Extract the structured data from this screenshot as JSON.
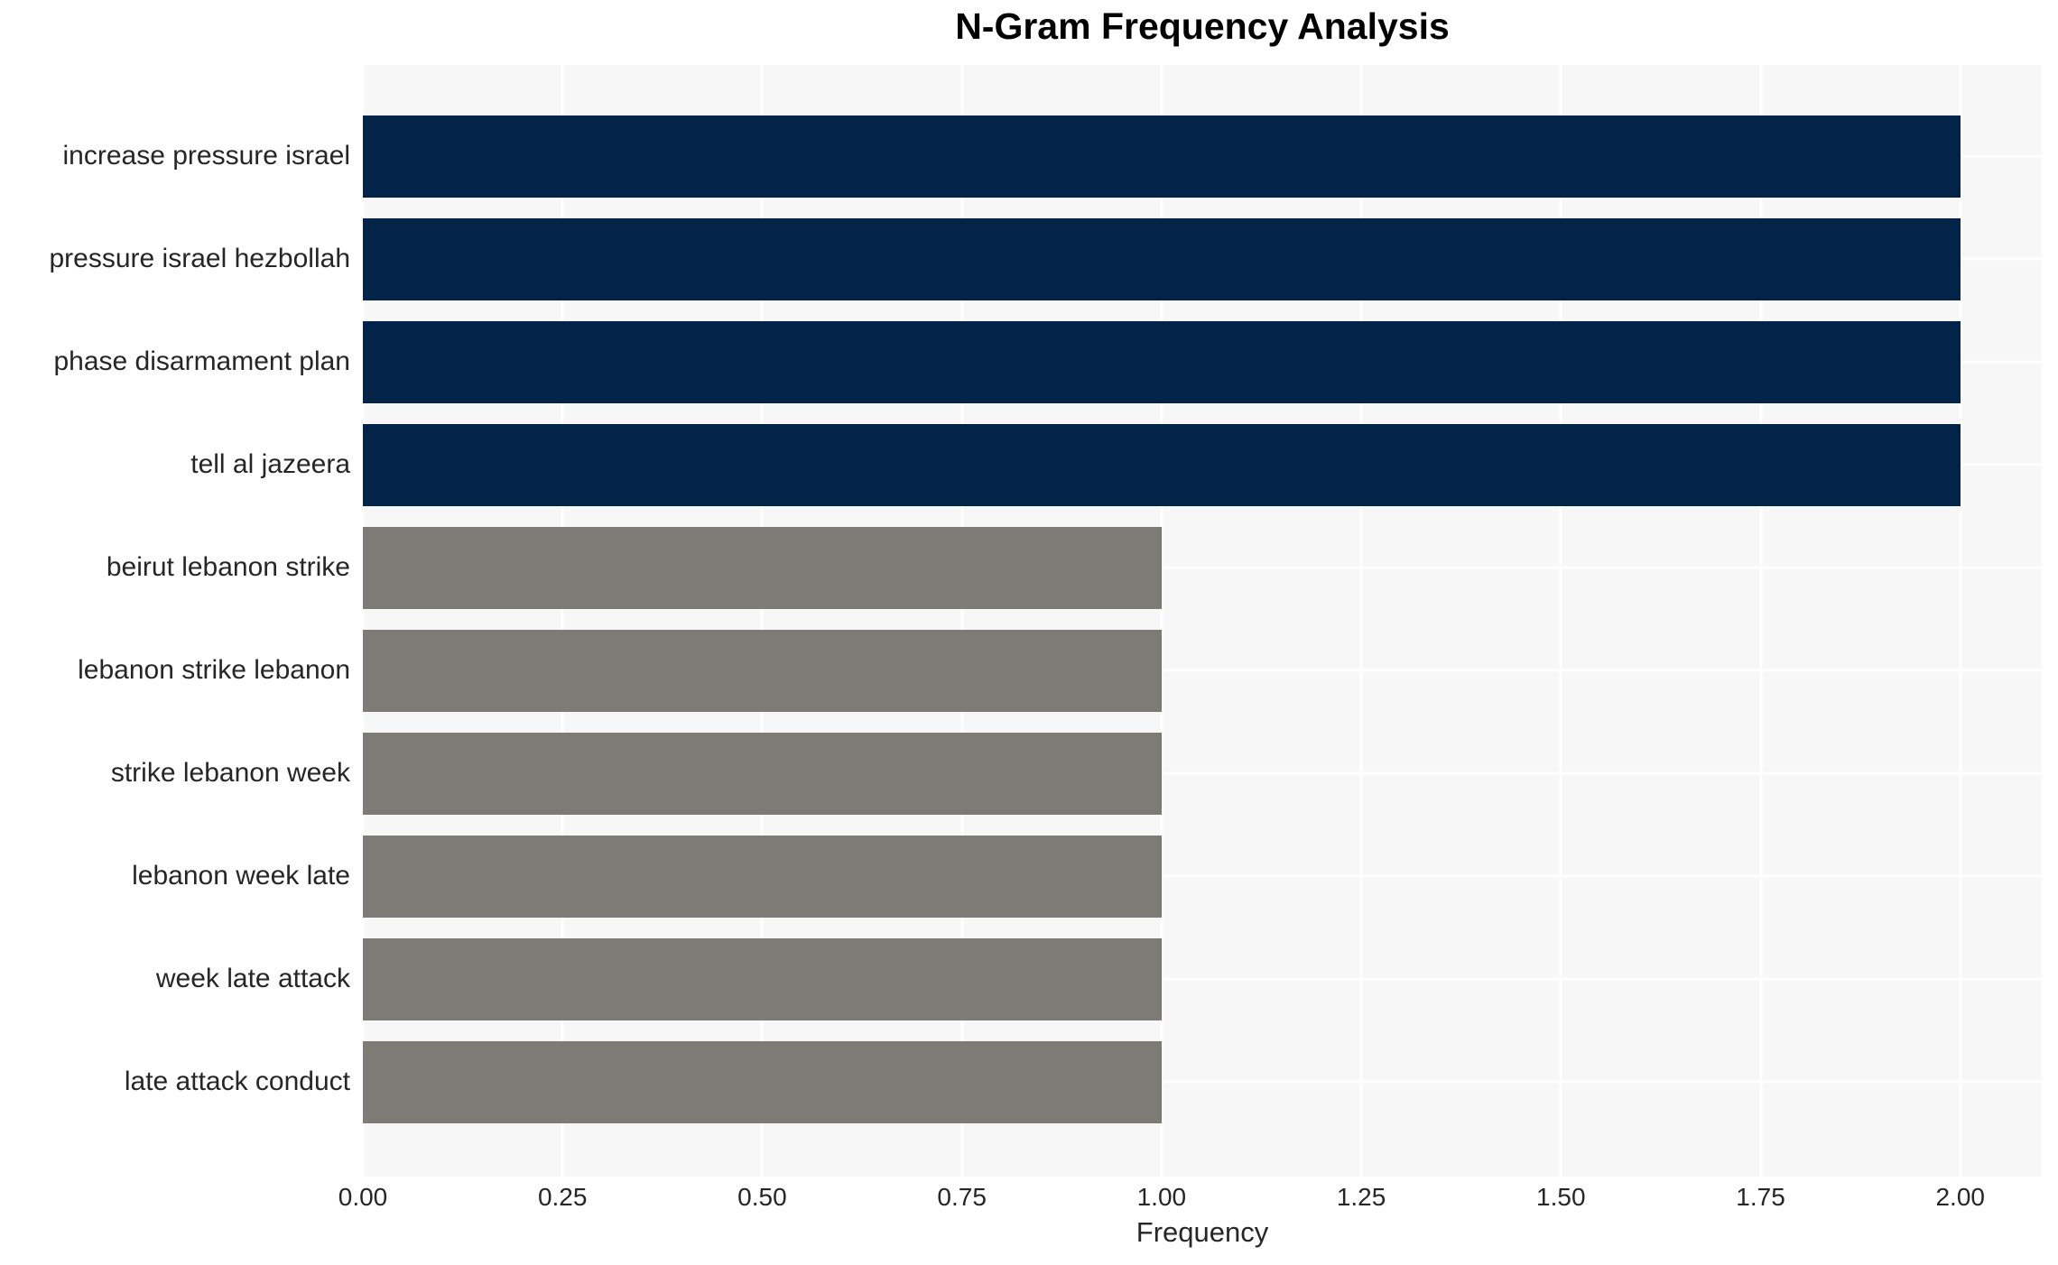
{
  "chart_data": {
    "type": "bar",
    "orientation": "horizontal",
    "title": "N-Gram Frequency Analysis",
    "xlabel": "Frequency",
    "ylabel": "",
    "categories": [
      "increase pressure israel",
      "pressure israel hezbollah",
      "phase disarmament plan",
      "tell al jazeera",
      "beirut lebanon strike",
      "lebanon strike lebanon",
      "strike lebanon week",
      "lebanon week late",
      "week late attack",
      "late attack conduct"
    ],
    "values": [
      2,
      2,
      2,
      2,
      1,
      1,
      1,
      1,
      1,
      1
    ],
    "bar_colors": [
      "#032349",
      "#032349",
      "#032349",
      "#032349",
      "#7d7b76",
      "#7d7b76",
      "#7d7b76",
      "#7d7b76",
      "#7d7b76",
      "#7d7b76"
    ],
    "xlim": [
      0,
      2.102
    ],
    "xticks": {
      "values": [
        0.0,
        0.25,
        0.5,
        0.75,
        1.0,
        1.25,
        1.5,
        1.75,
        2.0
      ],
      "labels": [
        "0.00",
        "0.25",
        "0.50",
        "0.75",
        "1.00",
        "1.25",
        "1.50",
        "1.75",
        "2.00"
      ]
    },
    "grid": true,
    "legend": null,
    "colors": {
      "figure_background": "#ffffff",
      "plot_background": "#f7f7f7",
      "gridline": "#ffffff",
      "tick_text": "#262626",
      "title_text": "#000000"
    }
  }
}
